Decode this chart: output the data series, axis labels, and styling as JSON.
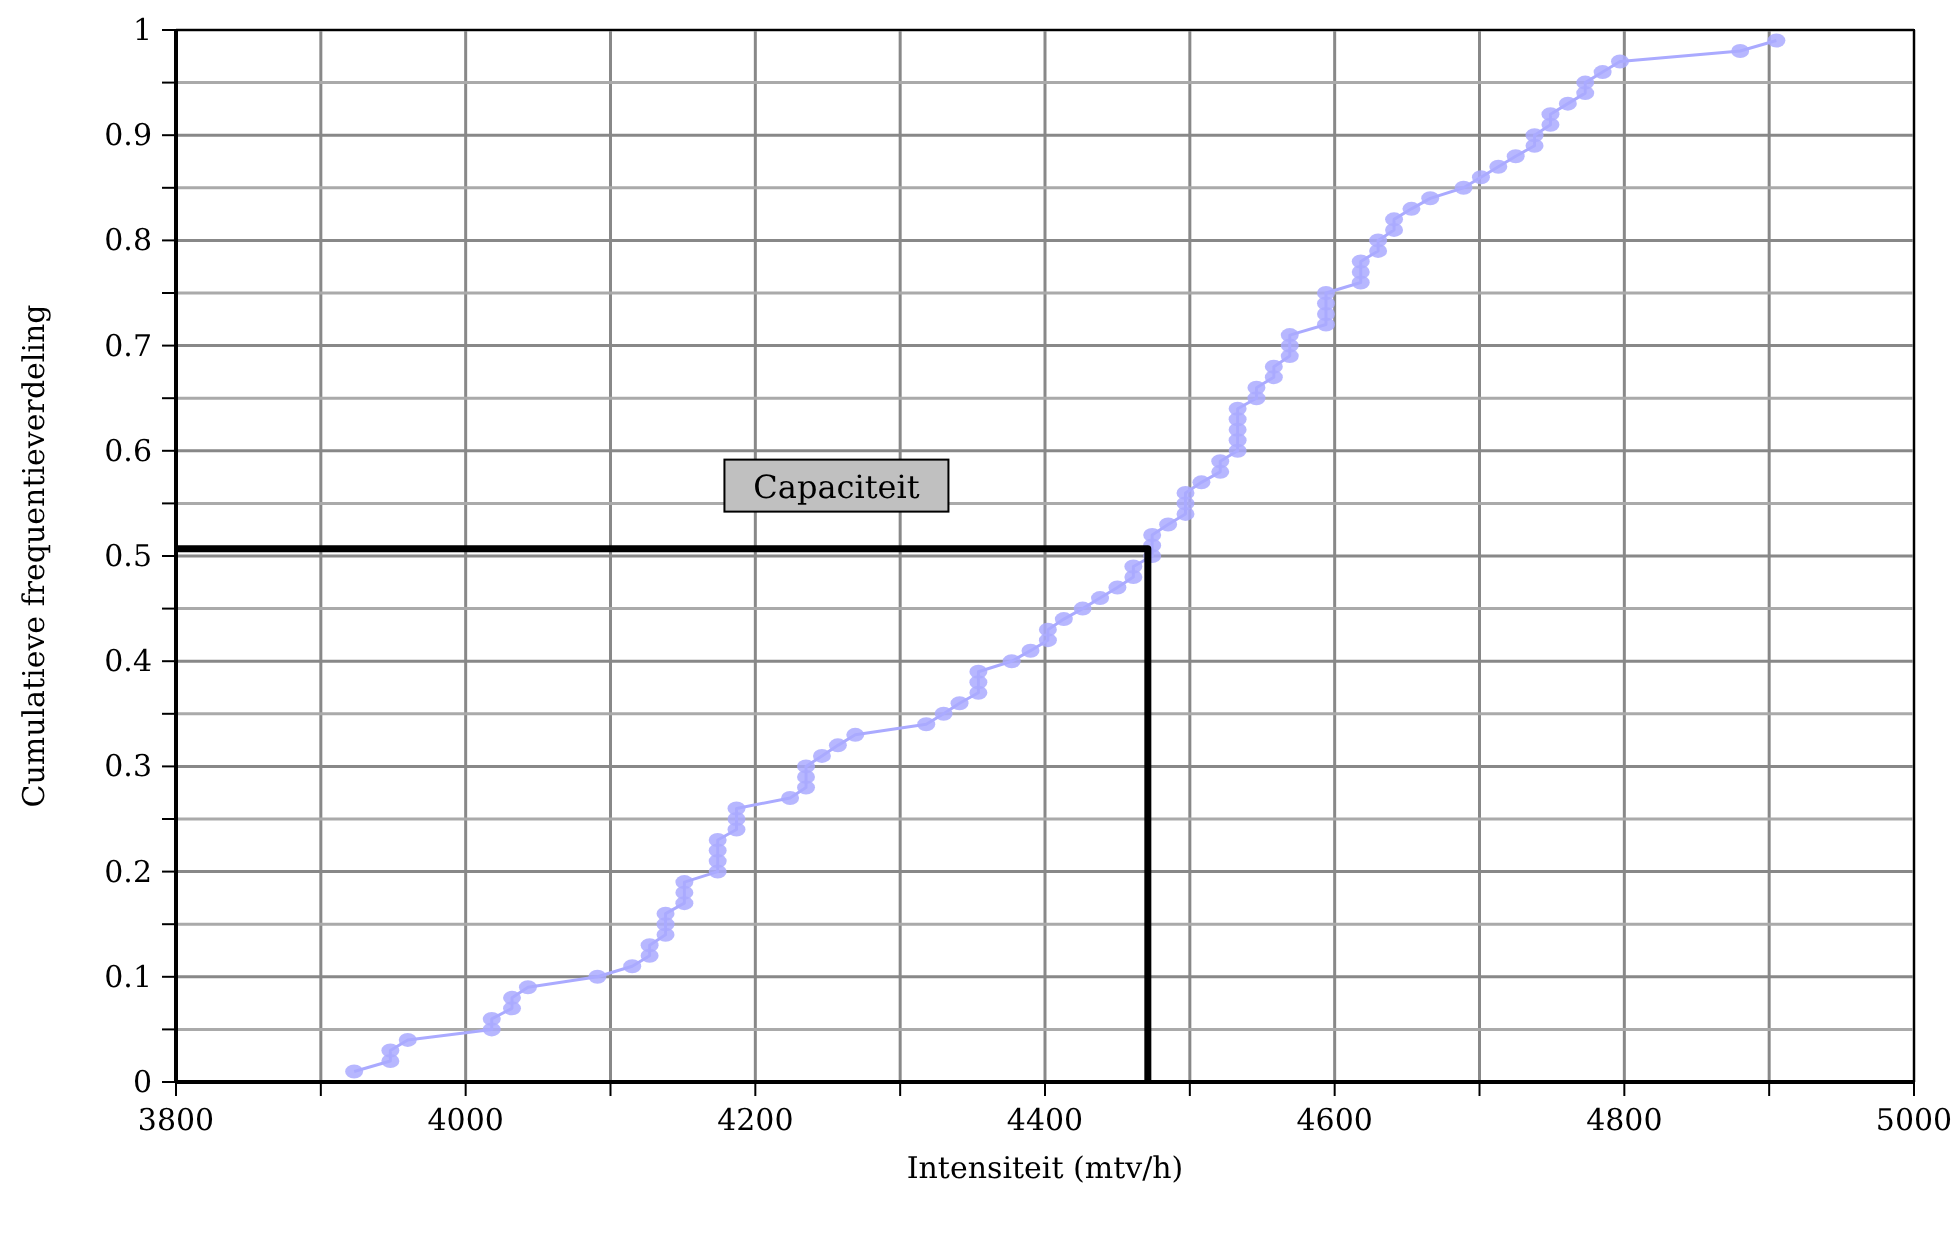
{
  "chart_data": {
    "type": "line",
    "xlabel": "Intensiteit (mtv/h)",
    "ylabel": "Cumulatieve frequentieverdeling",
    "xlim": [
      3800,
      5000
    ],
    "xticks": [
      3800,
      {
        "value": 3900,
        "label": null
      },
      4000,
      {
        "value": 4100,
        "label": null
      },
      4200,
      {
        "value": 4300,
        "label": null
      },
      4400,
      {
        "value": 4500,
        "label": null
      },
      4600,
      {
        "value": 4700,
        "label": null
      },
      4800,
      {
        "value": 4900,
        "label": null
      },
      5000
    ],
    "ylim": [
      0,
      1
    ],
    "yticks": [
      0,
      {
        "value": 0.05,
        "label": null
      },
      0.1,
      {
        "value": 0.15,
        "label": null
      },
      0.2,
      {
        "value": 0.25,
        "label": null
      },
      0.3,
      {
        "value": 0.35,
        "label": null
      },
      0.4,
      {
        "value": 0.45,
        "label": null
      },
      0.5,
      {
        "value": 0.55,
        "label": null
      },
      0.6,
      {
        "value": 0.65,
        "label": null
      },
      0.7,
      {
        "value": 0.75,
        "label": null
      },
      0.8,
      {
        "value": 0.85,
        "label": null
      },
      0.9,
      {
        "value": 0.95,
        "label": null
      },
      1
    ],
    "grid": true,
    "annotations": [
      "Capaciteit"
    ],
    "series": [
      {
        "color": "#aaaaff",
        "marker": "circle",
        "line_style": "solid",
        "x": [
          3923,
          3948,
          3948,
          3960,
          4018,
          4018,
          4032,
          4032,
          4043,
          4091,
          4115,
          4127,
          4127,
          4138,
          4138,
          4138,
          4151,
          4151,
          4151,
          4174,
          4174,
          4174,
          4174,
          4187,
          4187,
          4187,
          4224,
          4235,
          4235,
          4235,
          4246,
          4257,
          4269,
          4318,
          4330,
          4341,
          4354,
          4354,
          4354,
          4377,
          4390,
          4402,
          4402,
          4413,
          4426,
          4438,
          4450,
          4461,
          4461,
          4474,
          4474,
          4474,
          4485,
          4497,
          4497,
          4497,
          4508,
          4521,
          4521,
          4533,
          4533,
          4533,
          4533,
          4533,
          4546,
          4546,
          4558,
          4558,
          4569,
          4569,
          4569,
          4594,
          4594,
          4594,
          4594,
          4618,
          4618,
          4618,
          4630,
          4630,
          4641,
          4641,
          4653,
          4666,
          4689,
          4701,
          4713,
          4725,
          4738,
          4738,
          4749,
          4749,
          4761,
          4773,
          4773,
          4785,
          4797,
          4880,
          4905
        ],
        "values": [
          0.01,
          0.02,
          0.03,
          0.04,
          0.05,
          0.06,
          0.07,
          0.08,
          0.09,
          0.1,
          0.11,
          0.12,
          0.13,
          0.14,
          0.15,
          0.16,
          0.17,
          0.18,
          0.19,
          0.2,
          0.21,
          0.22,
          0.23,
          0.24,
          0.25,
          0.26,
          0.27,
          0.28,
          0.29,
          0.3,
          0.31,
          0.32,
          0.33,
          0.34,
          0.35,
          0.36,
          0.37,
          0.38,
          0.39,
          0.4,
          0.41,
          0.42,
          0.43,
          0.44,
          0.45,
          0.46,
          0.47,
          0.48,
          0.49,
          0.5,
          0.51,
          0.52,
          0.53,
          0.54,
          0.55,
          0.56,
          0.57,
          0.58,
          0.59,
          0.6,
          0.61,
          0.62,
          0.63,
          0.64,
          0.65,
          0.66,
          0.67,
          0.68,
          0.69,
          0.7,
          0.71,
          0.72,
          0.73,
          0.74,
          0.75,
          0.76,
          0.77,
          0.78,
          0.79,
          0.8,
          0.81,
          0.82,
          0.83,
          0.84,
          0.85,
          0.86,
          0.87,
          0.88,
          0.89,
          0.9,
          0.91,
          0.92,
          0.93,
          0.94,
          0.95,
          0.96,
          0.97,
          0.98,
          0.99
        ]
      },
      {
        "color": "#000000",
        "marker": "none",
        "line_style": "solid",
        "x": [
          3800,
          4471,
          4471
        ],
        "values": [
          0.507,
          0.507,
          0
        ]
      }
    ]
  }
}
